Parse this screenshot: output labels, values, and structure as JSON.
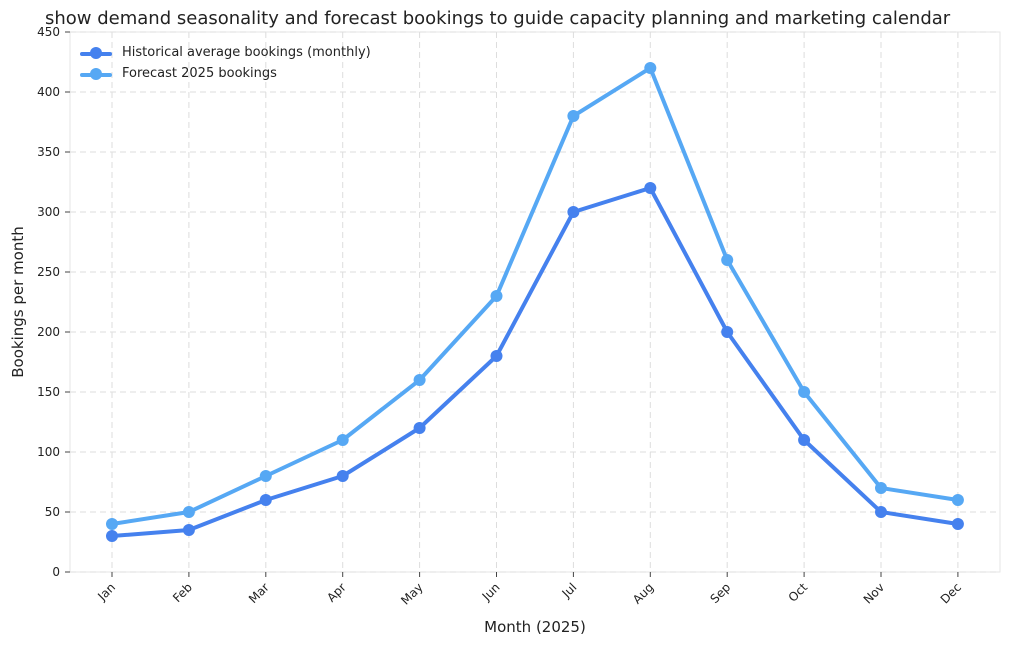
{
  "chart_data": {
    "type": "line",
    "title": "show demand seasonality and forecast bookings to guide capacity planning and marketing calendar",
    "xlabel": "Month (2025)",
    "ylabel": "Bookings per month",
    "categories": [
      "Jan",
      "Feb",
      "Mar",
      "Apr",
      "May",
      "Jun",
      "Jul",
      "Aug",
      "Sep",
      "Oct",
      "Nov",
      "Dec"
    ],
    "ylim": [
      0,
      450
    ],
    "yticks": [
      0,
      50,
      100,
      150,
      200,
      250,
      300,
      350,
      400,
      450
    ],
    "grid": true,
    "legend_position": "top-left",
    "series": [
      {
        "name": "Historical average bookings (monthly)",
        "color": "#4581ee",
        "values": [
          30,
          35,
          60,
          80,
          120,
          180,
          300,
          320,
          200,
          110,
          50,
          40
        ]
      },
      {
        "name": "Forecast 2025 bookings",
        "color": "#56a8f4",
        "values": [
          40,
          50,
          80,
          110,
          160,
          230,
          380,
          420,
          260,
          150,
          70,
          60
        ]
      }
    ]
  }
}
